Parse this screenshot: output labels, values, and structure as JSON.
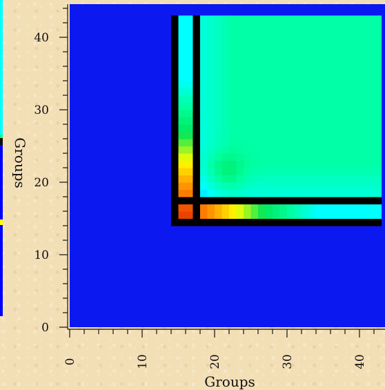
{
  "chart_data": {
    "type": "heatmap",
    "title": "",
    "xlabel": "Groups",
    "ylabel": "Groups",
    "xlim": [
      0,
      43
    ],
    "ylim": [
      0,
      43
    ],
    "x_ticks": [
      0,
      10,
      20,
      30,
      40
    ],
    "x_tick_labels": [
      "0",
      "10",
      "20",
      "30",
      "40"
    ],
    "y_ticks": [
      0,
      10,
      20,
      30,
      40
    ],
    "y_tick_labels": [
      "0",
      "10",
      "20",
      "30",
      "40"
    ],
    "grid": false,
    "legend": "none",
    "colormap": [
      "#0000ff",
      "#00ffff",
      "#00ff80",
      "#ffff00",
      "#ff8000",
      "#ff0000"
    ],
    "missing_color": "#000000",
    "background_value_color": "#0b18f0",
    "description_values": {
      "lower_region_value": 0.0,
      "block_upper_right_value": 0.35,
      "diagonal_peak_value": 0.85,
      "separator_value": null
    }
  }
}
